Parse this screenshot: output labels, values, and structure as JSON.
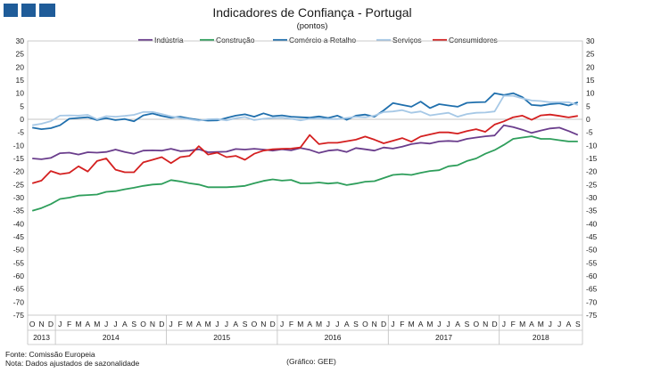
{
  "chart_data": {
    "type": "line",
    "title": "Indicadores de Confiança - Portugal",
    "subtitle": "(pontos)",
    "ylim": [
      -75,
      30
    ],
    "ytick_step": 5,
    "yticks": [
      "30",
      "25",
      "20",
      "15",
      "10",
      "5",
      "0",
      "-5",
      "-10",
      "-15",
      "-20",
      "-25",
      "-30",
      "-35",
      "-40",
      "-45",
      "-50",
      "-55",
      "-60",
      "-65",
      "-70",
      "-75"
    ],
    "months": [
      "O",
      "N",
      "D",
      "J",
      "F",
      "M",
      "A",
      "M",
      "J",
      "J",
      "A",
      "S",
      "O",
      "N",
      "D",
      "J",
      "F",
      "M",
      "A",
      "M",
      "J",
      "J",
      "A",
      "S",
      "O",
      "N",
      "D",
      "J",
      "F",
      "M",
      "A",
      "M",
      "J",
      "J",
      "A",
      "S",
      "O",
      "N",
      "D",
      "J",
      "F",
      "M",
      "A",
      "M",
      "J",
      "J",
      "A",
      "S",
      "O",
      "N",
      "D",
      "J",
      "F",
      "M",
      "A",
      "M",
      "J",
      "J",
      "A",
      "S"
    ],
    "years": [
      {
        "label": "2013",
        "start": 0,
        "count": 3
      },
      {
        "label": "2014",
        "start": 3,
        "count": 12
      },
      {
        "label": "2015",
        "start": 15,
        "count": 12
      },
      {
        "label": "2016",
        "start": 27,
        "count": 12
      },
      {
        "label": "2017",
        "start": 39,
        "count": 12
      },
      {
        "label": "2018",
        "start": 51,
        "count": 9
      }
    ],
    "series": [
      {
        "name": "Indústria",
        "color": "#6a3d8c",
        "values": [
          -15,
          -15.3,
          -14.8,
          -13,
          -12.8,
          -13.5,
          -12.6,
          -12.8,
          -12.5,
          -11.6,
          -12.5,
          -13.2,
          -12,
          -11.9,
          -12,
          -11.3,
          -12.2,
          -12,
          -11.5,
          -12.6,
          -12.5,
          -12.4,
          -11.4,
          -11.6,
          -11.3,
          -11.6,
          -12,
          -11.5,
          -11.9,
          -11,
          -11.7,
          -12.9,
          -12,
          -11.7,
          -12.5,
          -11,
          -11.5,
          -12,
          -10.8,
          -11.2,
          -10.5,
          -9.5,
          -9,
          -9.3,
          -8.5,
          -8.3,
          -8.5,
          -7.5,
          -7,
          -6.5,
          -6.2,
          -2.3,
          -3,
          -4,
          -5.2,
          -4.3,
          -3.5,
          -3.2,
          -4.5,
          -6
        ]
      },
      {
        "name": "Construção",
        "color": "#2e9e5b",
        "values": [
          -35,
          -34,
          -32.5,
          -30.5,
          -30,
          -29.2,
          -29,
          -28.8,
          -27.8,
          -27.5,
          -26.8,
          -26.2,
          -25.5,
          -25,
          -24.8,
          -23.3,
          -23.8,
          -24.5,
          -25,
          -26,
          -26,
          -26,
          -25.8,
          -25.5,
          -24.5,
          -23.6,
          -23,
          -23.5,
          -23.2,
          -24.5,
          -24.5,
          -24.2,
          -24.6,
          -24.3,
          -25.2,
          -24.6,
          -23.9,
          -23.7,
          -22.5,
          -21.3,
          -21,
          -21.3,
          -20.5,
          -19.8,
          -19.5,
          -18,
          -17.6,
          -16,
          -15,
          -13.2,
          -11.8,
          -9.8,
          -7.5,
          -7,
          -6.5,
          -7.5,
          -7.5,
          -8,
          -8.5,
          -8.5
        ]
      },
      {
        "name": "Comércio a Retalho",
        "color": "#1f6fad",
        "values": [
          -3.2,
          -3.8,
          -3.4,
          -2.3,
          0.2,
          0.5,
          0.8,
          -0.3,
          0.4,
          -0.3,
          0.1,
          -0.8,
          1.5,
          2.2,
          1.3,
          0.6,
          1,
          0.3,
          -0.2,
          -0.5,
          -0.4,
          0.5,
          1.4,
          1.9,
          1,
          2.3,
          1.2,
          1.5,
          1,
          0.8,
          0.6,
          1.1,
          0.5,
          1.4,
          -0.2,
          1.4,
          1.8,
          1,
          3.4,
          6.2,
          5.5,
          4.8,
          6.8,
          4.3,
          5.8,
          5.3,
          4.8,
          6.3,
          6.5,
          6.6,
          10,
          9.3,
          10,
          8.5,
          5.5,
          5.2,
          5.8,
          6.1,
          5.3,
          6.5
        ]
      },
      {
        "name": "Serviços",
        "color": "#a6c8e6",
        "values": [
          -2.3,
          -1.7,
          -0.7,
          1.4,
          1.5,
          1.4,
          1.7,
          0,
          1.2,
          1,
          1.3,
          1.7,
          2.8,
          2.8,
          2,
          1.1,
          0.5,
          0,
          -0.5,
          0,
          0.1,
          -0.4,
          0.4,
          0.9,
          -0.3,
          0.2,
          0.5,
          0.6,
          0.2,
          -0.4,
          0.2,
          0.3,
          0.1,
          0.1,
          0.5,
          1,
          0.8,
          1.4,
          2.8,
          3,
          3.5,
          2.5,
          3,
          1.5,
          2,
          2.5,
          1,
          2,
          2.5,
          2.6,
          3,
          9,
          9,
          8,
          7.2,
          7,
          6.5,
          6.5,
          6.5,
          5.5
        ]
      },
      {
        "name": "Consumidores",
        "color": "#d42020",
        "values": [
          -24.5,
          -23.5,
          -19.8,
          -21,
          -20.5,
          -18,
          -20,
          -16,
          -15,
          -19.3,
          -20.3,
          -20.3,
          -16.5,
          -15.5,
          -14.5,
          -16.8,
          -14.5,
          -14,
          -10.3,
          -13.5,
          -12.8,
          -14.5,
          -14,
          -15.5,
          -13.2,
          -12,
          -11.5,
          -11.3,
          -11.2,
          -10.8,
          -6,
          -9.5,
          -9,
          -9,
          -8.4,
          -7.8,
          -6.6,
          -7.8,
          -9.2,
          -8.2,
          -7.2,
          -8.6,
          -6.6,
          -5.8,
          -5,
          -5,
          -5.5,
          -4.5,
          -3.8,
          -4.8,
          -2,
          -0.8,
          0.8,
          1.4,
          -0.2,
          1.5,
          1.8,
          1.3,
          0.7,
          1.3
        ]
      }
    ]
  },
  "footer": {
    "source": "Fonte: Comissão Europeia",
    "note": "Nota: Dados ajustados de sazonalidade",
    "credit": "(Gráfico: GEE)"
  }
}
